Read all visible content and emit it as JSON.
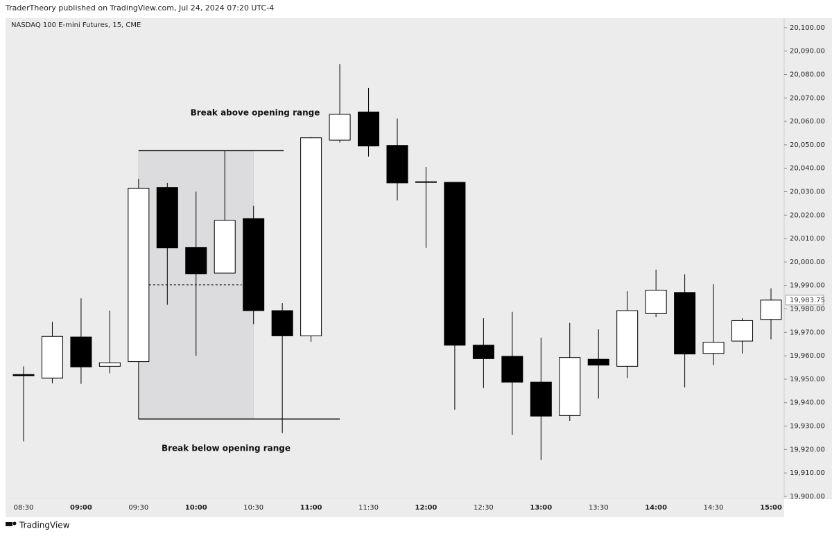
{
  "header": "TraderTheory published on TradingView.com, Jul 24, 2024 07:20 UTC-4",
  "footer": "TradingView",
  "chart_data": {
    "type": "candlestick",
    "title": "NASDAQ 100 E-mini Futures, 15, CME",
    "categories": [
      "08:30",
      null,
      "09:00",
      null,
      "09:30",
      null,
      "10:00",
      null,
      "10:30",
      null,
      "11:00",
      null,
      "11:30",
      null,
      "12:00",
      null,
      "12:30",
      null,
      "13:00",
      null,
      "13:30",
      null,
      "14:00",
      null,
      "14:30",
      null,
      "15:00"
    ],
    "open": [
      19952,
      19950.5,
      19968,
      19955.5,
      19957.5,
      20031.75,
      20006.25,
      19995.25,
      20018.5,
      19979.25,
      19968.5,
      20052,
      20064,
      20049.75,
      20034.25,
      20034,
      19964.5,
      19959.75,
      19948.75,
      19934.5,
      19958.5,
      19955.5,
      19978,
      19987,
      19961,
      19966.25,
      19975.5
    ],
    "high": [
      19955.5,
      19974.5,
      19984.5,
      19979.25,
      20035.5,
      20033.75,
      20030,
      20047.5,
      20024,
      19982.5,
      20053.25,
      20084.5,
      20074.25,
      20061.25,
      20040.5,
      20034,
      19976,
      19978.75,
      19967.75,
      19974,
      19971.25,
      19987.5,
      19996.75,
      19994.75,
      19990.5,
      19976,
      19988.75
    ],
    "low": [
      19923.5,
      19948.25,
      19948,
      19952.5,
      19933,
      19981.75,
      19960,
      19995.25,
      19973.5,
      19927,
      19966,
      20051,
      20045,
      20026.25,
      20006,
      19937,
      19946.25,
      19926.25,
      19915.5,
      19932.25,
      19941.75,
      19950.5,
      19976.5,
      19946.5,
      19956,
      19961,
      19967
    ],
    "close": [
      19951.5,
      19968.25,
      19955.25,
      19957,
      20031.5,
      20006,
      19995,
      20017.75,
      19979.25,
      19968.5,
      20053,
      20063,
      20049.5,
      20033.75,
      20034.25,
      19964.5,
      19958.75,
      19948.75,
      19934.25,
      19959.25,
      19956,
      19979.25,
      19988,
      19960.75,
      19965.75,
      19975,
      19983.75
    ],
    "ylim": [
      19899.4,
      20104.1
    ],
    "yticks": [
      {
        "value": 19900,
        "label": "19,900.00"
      },
      {
        "value": 19910,
        "label": "19,910.00"
      },
      {
        "value": 19920,
        "label": "19,920.00"
      },
      {
        "value": 19930,
        "label": "19,930.00"
      },
      {
        "value": 19940,
        "label": "19,940.00"
      },
      {
        "value": 19950,
        "label": "19,950.00"
      },
      {
        "value": 19960,
        "label": "19,960.00"
      },
      {
        "value": 19970,
        "label": "19,970.00"
      },
      {
        "value": 19980,
        "label": "19,980.00"
      },
      {
        "value": 19990,
        "label": "19,990.00"
      },
      {
        "value": 20000,
        "label": "20,000.00"
      },
      {
        "value": 20010,
        "label": "20,010.00"
      },
      {
        "value": 20020,
        "label": "20,020.00"
      },
      {
        "value": 20030,
        "label": "20,030.00"
      },
      {
        "value": 20040,
        "label": "20,040.00"
      },
      {
        "value": 20050,
        "label": "20,050.00"
      },
      {
        "value": 20060,
        "label": "20,060.00"
      },
      {
        "value": 20070,
        "label": "20,070.00"
      },
      {
        "value": 20080,
        "label": "20,080.00"
      },
      {
        "value": 20090,
        "label": "20,090.00"
      },
      {
        "value": 20100,
        "label": "20,100.00"
      }
    ],
    "last_price": {
      "value": 19983.75,
      "label": "19,983.75"
    },
    "opening_range": {
      "high": 20047.5,
      "low": 19933,
      "mid": 19990.25
    },
    "annotations": [
      "Break above opening range",
      "Break below opening range"
    ],
    "up_color": "#ffffff",
    "down_color": "#000000"
  }
}
